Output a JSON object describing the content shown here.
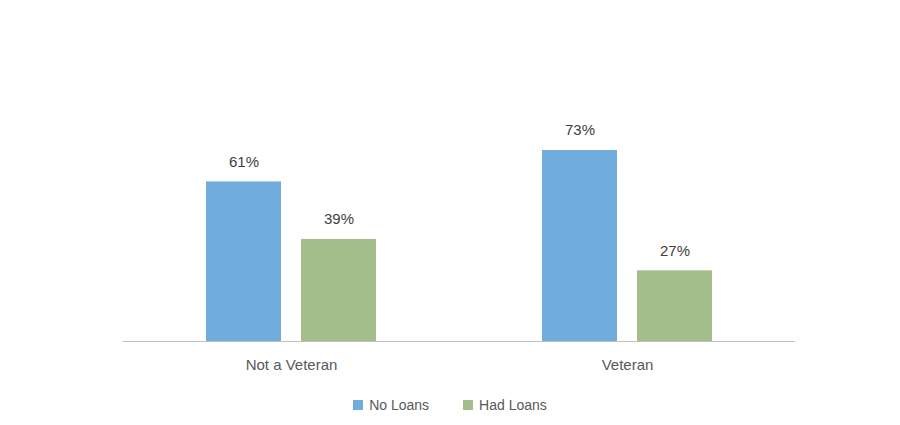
{
  "chart_data": {
    "type": "bar",
    "categories": [
      "Not a Veteran",
      "Veteran"
    ],
    "series": [
      {
        "name": "No Loans",
        "color": "#70ADDC",
        "values": [
          61,
          73
        ],
        "value_labels": [
          "61%",
          "73%"
        ]
      },
      {
        "name": "Had Loans",
        "color": "#A3BD8B",
        "values": [
          39,
          27
        ],
        "value_labels": [
          "39%",
          "27%"
        ]
      }
    ],
    "data_labels": true,
    "legend": "bottom",
    "tick_labels": "x"
  }
}
